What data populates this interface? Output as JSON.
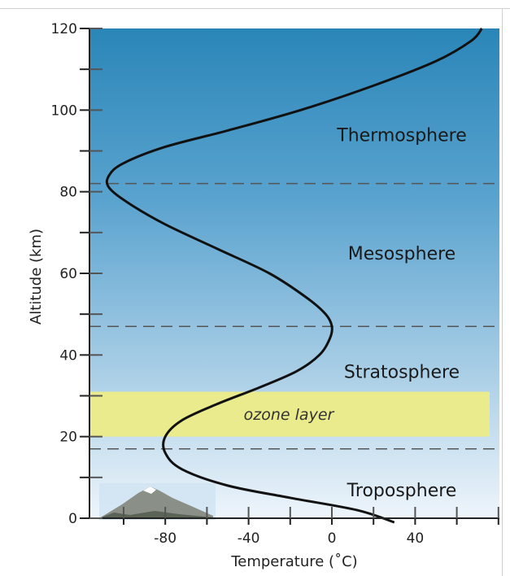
{
  "chart_data": {
    "type": "line",
    "title": "",
    "xlabel": "Temperature (˚C)",
    "ylabel": "Altitude (km)",
    "xlim": [
      -115,
      90
    ],
    "ylim": [
      0,
      120
    ],
    "x_ticks": [
      -80,
      -40,
      0,
      40
    ],
    "x_tick_labels": [
      "-80",
      "-40",
      "0",
      "40"
    ],
    "y_ticks": [
      0,
      20,
      40,
      60,
      80,
      100,
      120
    ],
    "y_tick_labels": [
      "0",
      "20",
      "40",
      "60",
      "80",
      "100",
      "120"
    ],
    "series": [
      {
        "points": [
          {
            "x": 30,
            "y": -1
          },
          {
            "x": 12,
            "y": 2
          },
          {
            "x": -20,
            "y": 5
          },
          {
            "x": -50,
            "y": 8
          },
          {
            "x": -72,
            "y": 12
          },
          {
            "x": -80,
            "y": 16
          },
          {
            "x": -80,
            "y": 20
          },
          {
            "x": -72,
            "y": 24
          },
          {
            "x": -55,
            "y": 28
          },
          {
            "x": -35,
            "y": 32
          },
          {
            "x": -17,
            "y": 36
          },
          {
            "x": -6,
            "y": 40
          },
          {
            "x": -1,
            "y": 44
          },
          {
            "x": 0,
            "y": 47
          },
          {
            "x": -3,
            "y": 50
          },
          {
            "x": -12,
            "y": 54
          },
          {
            "x": -30,
            "y": 60
          },
          {
            "x": -55,
            "y": 66
          },
          {
            "x": -80,
            "y": 72
          },
          {
            "x": -97,
            "y": 77
          },
          {
            "x": -107,
            "y": 81
          },
          {
            "x": -107,
            "y": 84
          },
          {
            "x": -100,
            "y": 87
          },
          {
            "x": -80,
            "y": 91
          },
          {
            "x": -50,
            "y": 95
          },
          {
            "x": -15,
            "y": 100
          },
          {
            "x": 20,
            "y": 106
          },
          {
            "x": 50,
            "y": 112
          },
          {
            "x": 67,
            "y": 117
          },
          {
            "x": 72,
            "y": 120
          }
        ]
      }
    ],
    "boundaries": [
      17,
      47,
      82
    ],
    "ozone_band": [
      20,
      31
    ],
    "layers": [
      {
        "name": "Troposphere",
        "label_altitude": 7
      },
      {
        "name": "Stratosphere",
        "label_altitude": 36
      },
      {
        "name": "Mesosphere",
        "label_altitude": 65
      },
      {
        "name": "Thermosphere",
        "label_altitude": 94
      }
    ],
    "ozone_label": "ozone layer",
    "colors": {
      "sky_top": "#2a86b8",
      "sky_bottom": "#eaf3fa",
      "ozone": "#e9eb8c",
      "curve": "#111111",
      "boundary": "#555555"
    },
    "grid": false,
    "legend": "none"
  }
}
